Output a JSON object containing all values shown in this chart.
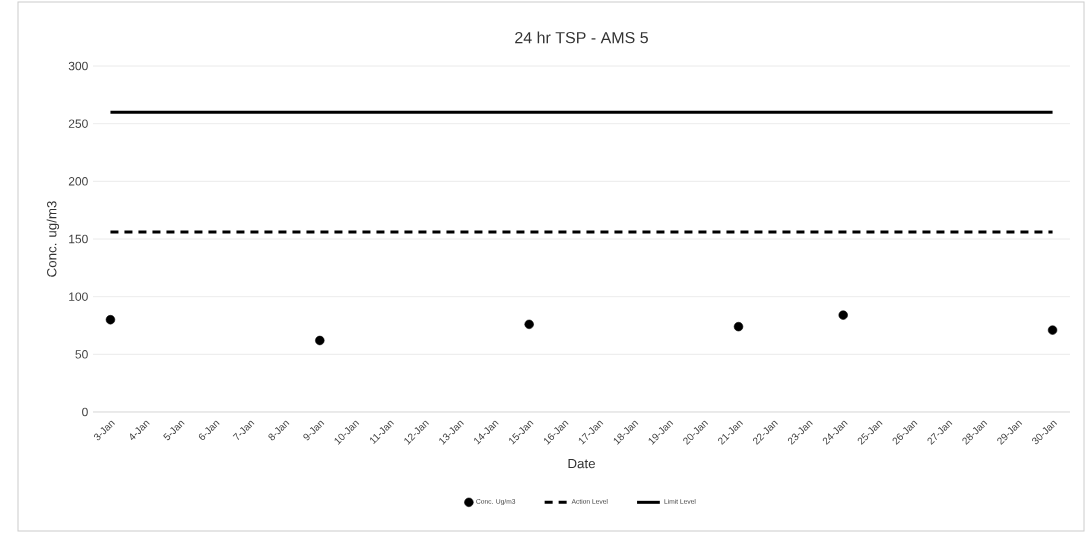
{
  "chart_data": {
    "type": "scatter",
    "title": "24 hr TSP - AMS 5",
    "xlabel": "Date",
    "ylabel": "Conc. ug/m3",
    "categories": [
      "3-Jan",
      "4-Jan",
      "5-Jan",
      "6-Jan",
      "7-Jan",
      "8-Jan",
      "9-Jan",
      "10-Jan",
      "11-Jan",
      "12-Jan",
      "13-Jan",
      "14-Jan",
      "15-Jan",
      "16-Jan",
      "17-Jan",
      "18-Jan",
      "19-Jan",
      "20-Jan",
      "21-Jan",
      "22-Jan",
      "23-Jan",
      "24-Jan",
      "25-Jan",
      "26-Jan",
      "27-Jan",
      "28-Jan",
      "29-Jan",
      "30-Jan"
    ],
    "series": [
      {
        "name": "Conc. Ug/m3",
        "color": "#000000",
        "values": [
          80,
          null,
          null,
          null,
          null,
          null,
          62,
          null,
          null,
          null,
          null,
          null,
          76,
          null,
          null,
          null,
          null,
          null,
          74,
          null,
          null,
          84,
          null,
          null,
          null,
          null,
          null,
          71
        ]
      }
    ],
    "ref_lines": [
      {
        "axis": "y",
        "value": 156,
        "label": "Action Level",
        "color": "#000000",
        "line_style": "dashed"
      },
      {
        "axis": "y",
        "value": 260,
        "label": "Limit Level",
        "color": "#000000",
        "line_style": "solid"
      }
    ],
    "ylim": [
      0,
      300
    ],
    "yticks": [
      0,
      50,
      100,
      150,
      200,
      250,
      300
    ],
    "grid": "y",
    "legend": "bottom"
  }
}
